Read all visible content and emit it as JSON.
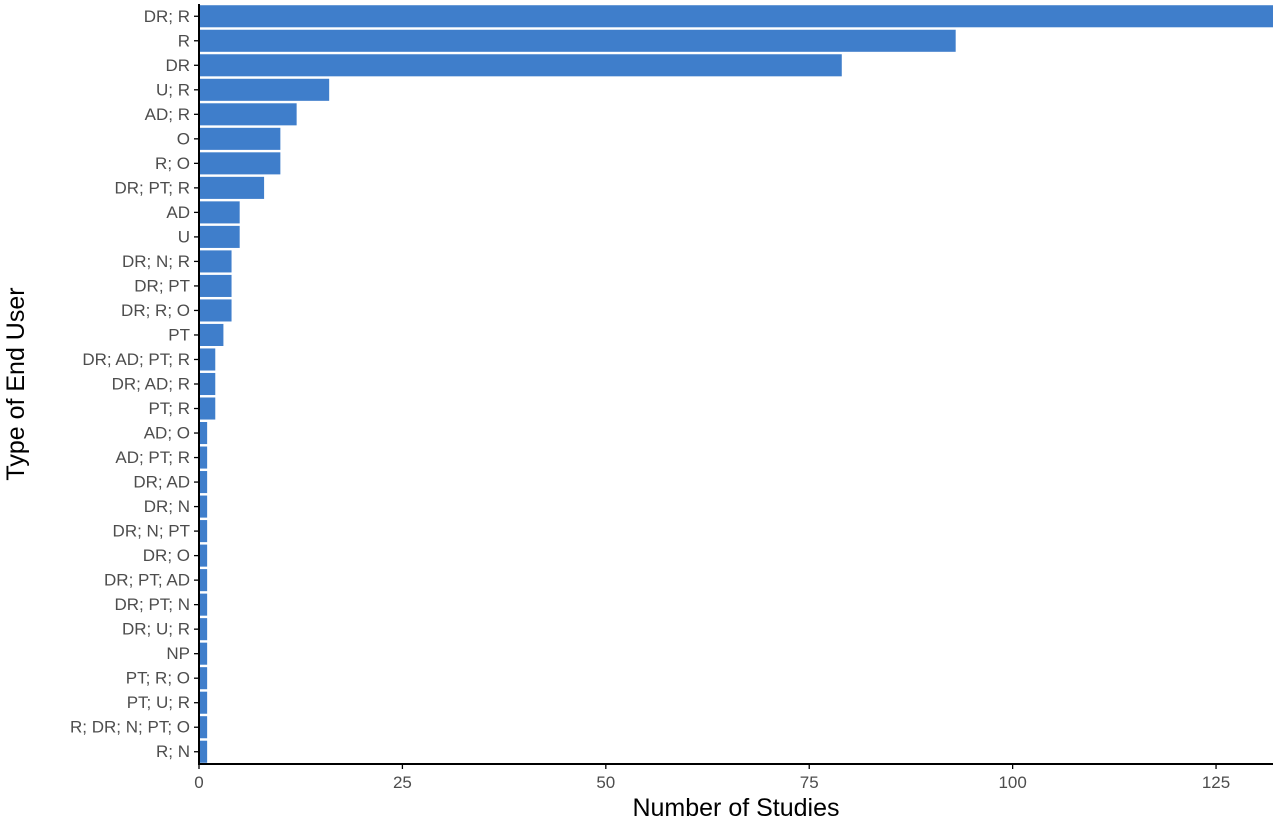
{
  "chart_data": {
    "type": "bar",
    "orientation": "horizontal",
    "xlabel": "Number of Studies",
    "ylabel": "Type of End User",
    "xlim": [
      0,
      132
    ],
    "xticks": [
      0,
      25,
      50,
      75,
      100,
      125
    ],
    "grid": false,
    "bar_color": "#3f7ecb",
    "categories": [
      "DR; R",
      "R",
      "DR",
      "U; R",
      "AD; R",
      "O",
      "R; O",
      "DR; PT; R",
      "AD",
      "U",
      "DR; N; R",
      "DR; PT",
      "DR; R; O",
      "PT",
      "DR; AD; PT; R",
      "DR; AD; R",
      "PT; R",
      "AD; O",
      "AD; PT; R",
      "DR; AD",
      "DR; N",
      "DR; N; PT",
      "DR; O",
      "DR; PT; AD",
      "DR; PT; N",
      "DR; U; R",
      "NP",
      "PT; R; O",
      "PT; U; R",
      "R; DR; N; PT; O",
      "R; N"
    ],
    "values": [
      132,
      93,
      79,
      16,
      12,
      10,
      10,
      8,
      5,
      5,
      4,
      4,
      4,
      3,
      2,
      2,
      2,
      1,
      1,
      1,
      1,
      1,
      1,
      1,
      1,
      1,
      1,
      1,
      1,
      1,
      1
    ]
  }
}
